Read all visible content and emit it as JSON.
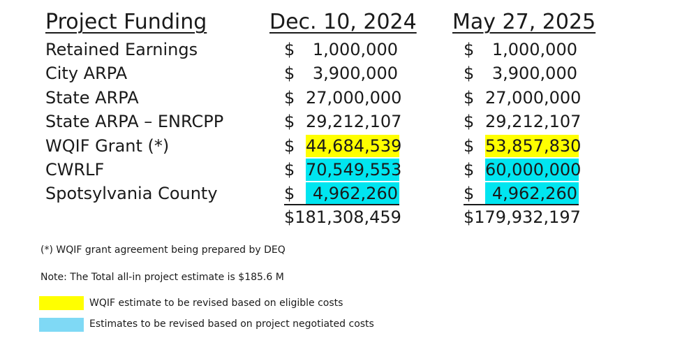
{
  "header": {
    "label": "Project Funding",
    "col1": "Dec. 10, 2024",
    "col2": "May 27, 2025"
  },
  "currency_symbol": "$",
  "colors": {
    "yellow": "#FFFF00",
    "cyan": "#00E5F0",
    "legend_cyan": "#7FD9F5"
  },
  "rows": [
    {
      "label": "Retained Earnings",
      "dec": "1,000,000",
      "may": "1,000,000"
    },
    {
      "label": "City ARPA",
      "dec": "3,900,000",
      "may": "3,900,000"
    },
    {
      "label": "State ARPA",
      "dec": "27,000,000",
      "may": "27,000,000"
    },
    {
      "label": "State ARPA – ENRCPP",
      "dec": "29,212,107",
      "may": "29,212,107"
    },
    {
      "label": "WQIF Grant (*)",
      "dec": "44,684,539",
      "may": "53,857,830",
      "highlight": "yellow"
    },
    {
      "label": "CWRLF",
      "dec": "70,549,553",
      "may": "60,000,000",
      "highlight": "cyan"
    },
    {
      "label": "Spotsylvania County",
      "dec": "4,962,260",
      "may": "4,962,260",
      "highlight": "cyan"
    }
  ],
  "totals": {
    "dec": "$181,308,459",
    "may": "$179,932,197"
  },
  "footnote": "(*) WQIF grant agreement being prepared by DEQ",
  "note": "Note: The Total all-in project estimate is $185.6 M",
  "legend": [
    {
      "color": "yellow",
      "text": "WQIF  estimate to be revised based on eligible costs"
    },
    {
      "color": "legend_cyan",
      "text": "Estimates to be revised based on project negotiated costs"
    }
  ]
}
